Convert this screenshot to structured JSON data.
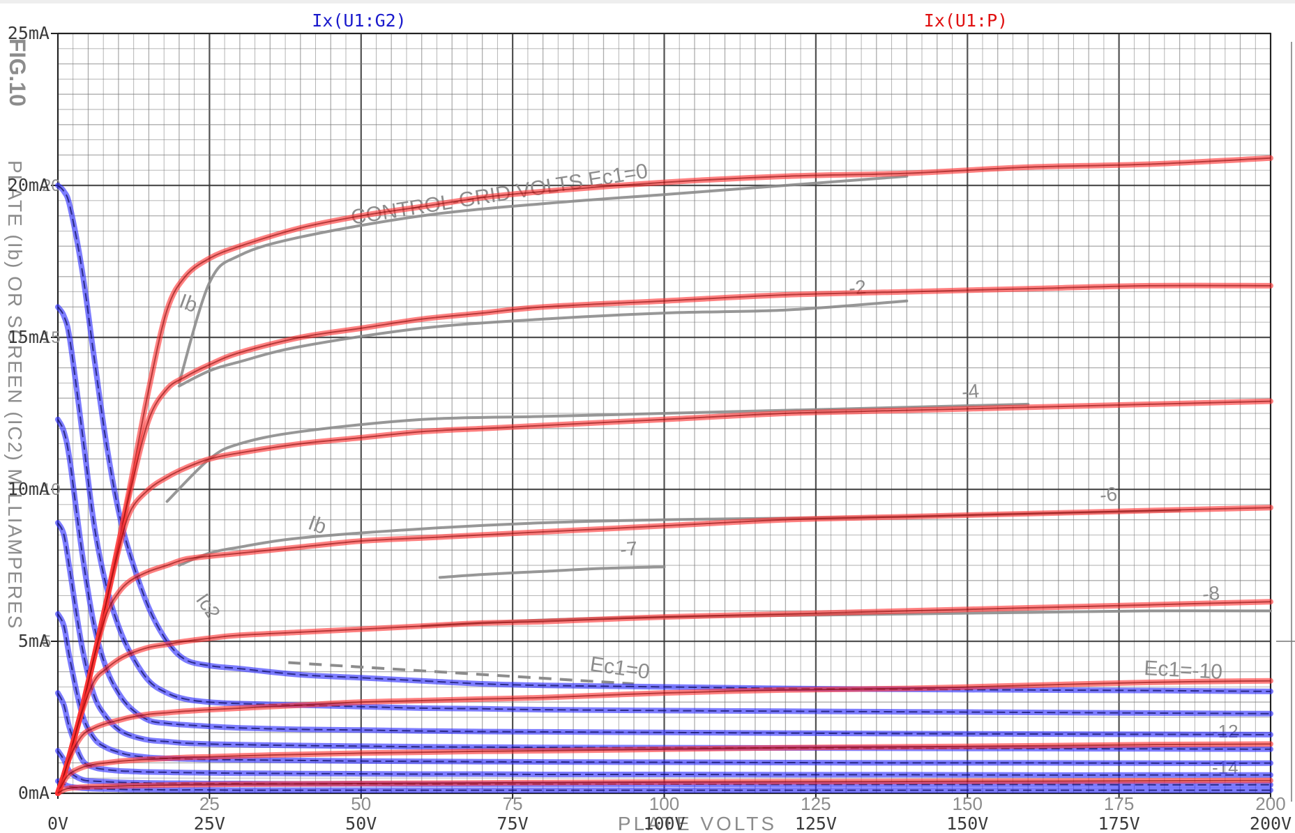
{
  "chart_data": {
    "type": "line",
    "legend": [
      "Ix(U1:G2)",
      "Ix(U1:P)"
    ],
    "colors": {
      "screen": "#2b2bff",
      "plate": "#ff3333",
      "legend_screen": "#1a1acc",
      "legend_plate": "#e01010",
      "background_curve": "#8c8c8c",
      "grid_major": "#333333",
      "grid_minor": "#777777"
    },
    "xlim": [
      0,
      200
    ],
    "ylim": [
      0,
      25
    ],
    "x_ticks": [
      "0V",
      "25V",
      "50V",
      "75V",
      "100V",
      "125V",
      "150V",
      "175V",
      "200V"
    ],
    "y_ticks": [
      "0mA",
      "5mA",
      "10mA",
      "15mA",
      "20mA",
      "25mA"
    ],
    "x_values_v": [
      0,
      1,
      2,
      4,
      6,
      8,
      10,
      12,
      15,
      18,
      21,
      25,
      30,
      40,
      50,
      60,
      70,
      80,
      100,
      120,
      140,
      160,
      180,
      200
    ],
    "series": [
      {
        "name": "Ix(U1:G2)",
        "kind": "screen",
        "values": [
          20,
          19.8,
          19.3,
          17.2,
          14.3,
          11.5,
          9.3,
          7.8,
          6.1,
          5.0,
          4.4,
          4.2,
          4.1,
          3.9,
          3.8,
          3.7,
          3.6,
          3.55,
          3.5,
          3.45,
          3.42,
          3.4,
          3.38,
          3.35
        ]
      },
      {
        "name": "Ix(U1:G2)",
        "kind": "screen",
        "values": [
          16,
          15.7,
          14.9,
          11.9,
          8.8,
          6.8,
          5.5,
          4.6,
          3.7,
          3.3,
          3.1,
          3.0,
          2.95,
          2.9,
          2.85,
          2.8,
          2.78,
          2.75,
          2.72,
          2.7,
          2.68,
          2.66,
          2.64,
          2.62
        ]
      },
      {
        "name": "Ix(U1:G2)",
        "kind": "screen",
        "values": [
          12.3,
          11.9,
          10.9,
          7.9,
          5.5,
          4.1,
          3.3,
          2.8,
          2.4,
          2.3,
          2.25,
          2.2,
          2.15,
          2.1,
          2.08,
          2.05,
          2.03,
          2.02,
          2.0,
          1.98,
          1.96,
          1.95,
          1.94,
          1.93
        ]
      },
      {
        "name": "Ix(U1:G2)",
        "kind": "screen",
        "values": [
          8.9,
          8.5,
          7.3,
          4.8,
          3.2,
          2.5,
          2.1,
          1.9,
          1.75,
          1.7,
          1.65,
          1.62,
          1.6,
          1.57,
          1.55,
          1.53,
          1.52,
          1.51,
          1.5,
          1.49,
          1.48,
          1.47,
          1.46,
          1.45
        ]
      },
      {
        "name": "Ix(U1:G2)",
        "kind": "screen",
        "values": [
          5.9,
          5.5,
          4.4,
          2.6,
          1.8,
          1.5,
          1.35,
          1.25,
          1.18,
          1.15,
          1.13,
          1.11,
          1.1,
          1.08,
          1.06,
          1.05,
          1.04,
          1.03,
          1.02,
          1.01,
          1.0,
          1.0,
          0.99,
          0.99
        ]
      },
      {
        "name": "Ix(U1:G2)",
        "kind": "screen",
        "values": [
          3.3,
          2.9,
          2.1,
          1.1,
          0.85,
          0.78,
          0.74,
          0.72,
          0.7,
          0.69,
          0.68,
          0.67,
          0.66,
          0.65,
          0.64,
          0.63,
          0.63,
          0.62,
          0.62,
          0.61,
          0.61,
          0.6,
          0.6,
          0.6
        ]
      },
      {
        "name": "Ix(U1:G2)",
        "kind": "screen",
        "values": [
          1.4,
          1.1,
          0.7,
          0.45,
          0.4,
          0.38,
          0.36,
          0.35,
          0.34,
          0.33,
          0.33,
          0.32,
          0.32,
          0.31,
          0.31,
          0.3,
          0.3,
          0.3,
          0.3,
          0.29,
          0.29,
          0.29,
          0.28,
          0.28
        ]
      },
      {
        "name": "Ix(U1:G2)",
        "kind": "screen",
        "values": [
          0.4,
          0.3,
          0.22,
          0.17,
          0.15,
          0.14,
          0.13,
          0.12,
          0.12,
          0.11,
          0.11,
          0.11,
          0.1,
          0.1,
          0.1,
          0.1,
          0.1,
          0.1,
          0.1,
          0.1,
          0.1,
          0.1,
          0.1,
          0.1
        ]
      },
      {
        "name": "Ix(U1:P)",
        "kind": "plate",
        "values": [
          0,
          0.6,
          1.3,
          2.8,
          4.5,
          6.3,
          8.2,
          10.2,
          13.3,
          15.9,
          17.0,
          17.6,
          18.0,
          18.6,
          19.0,
          19.3,
          19.6,
          19.8,
          20.1,
          20.3,
          20.4,
          20.6,
          20.7,
          20.9
        ]
      },
      {
        "name": "Ix(U1:P)",
        "kind": "plate",
        "values": [
          0,
          0.6,
          1.3,
          2.8,
          4.5,
          6.3,
          8.2,
          10.0,
          12.3,
          13.3,
          13.7,
          14.1,
          14.5,
          15.0,
          15.3,
          15.6,
          15.8,
          16.0,
          16.2,
          16.4,
          16.5,
          16.6,
          16.7,
          16.7
        ]
      },
      {
        "name": "Ix(U1:P)",
        "kind": "plate",
        "values": [
          0,
          0.6,
          1.3,
          2.8,
          4.5,
          6.3,
          8.0,
          9.3,
          10.0,
          10.4,
          10.7,
          11.0,
          11.2,
          11.5,
          11.7,
          11.9,
          12.0,
          12.1,
          12.3,
          12.5,
          12.6,
          12.7,
          12.8,
          12.9
        ]
      },
      {
        "name": "Ix(U1:P)",
        "kind": "plate",
        "values": [
          0,
          0.6,
          1.3,
          2.8,
          4.5,
          5.9,
          6.6,
          7.0,
          7.3,
          7.5,
          7.7,
          7.8,
          7.9,
          8.1,
          8.3,
          8.4,
          8.5,
          8.6,
          8.8,
          9.0,
          9.1,
          9.2,
          9.3,
          9.4
        ]
      },
      {
        "name": "Ix(U1:P)",
        "kind": "plate",
        "values": [
          0,
          0.6,
          1.3,
          2.7,
          3.7,
          4.1,
          4.4,
          4.6,
          4.8,
          4.9,
          5.0,
          5.1,
          5.2,
          5.3,
          5.4,
          5.5,
          5.6,
          5.65,
          5.8,
          5.9,
          6.0,
          6.1,
          6.2,
          6.3
        ]
      },
      {
        "name": "Ix(U1:P)",
        "kind": "plate",
        "values": [
          0,
          0.6,
          1.2,
          1.9,
          2.15,
          2.3,
          2.4,
          2.5,
          2.6,
          2.65,
          2.7,
          2.75,
          2.8,
          2.9,
          3.0,
          3.05,
          3.1,
          3.15,
          3.3,
          3.4,
          3.45,
          3.55,
          3.65,
          3.7
        ]
      },
      {
        "name": "Ix(U1:P)",
        "kind": "plate",
        "values": [
          0,
          0.4,
          0.65,
          0.85,
          0.95,
          1.0,
          1.05,
          1.08,
          1.12,
          1.15,
          1.18,
          1.2,
          1.23,
          1.28,
          1.32,
          1.35,
          1.38,
          1.4,
          1.45,
          1.5,
          1.53,
          1.56,
          1.6,
          1.62
        ]
      },
      {
        "name": "Ix(U1:P)",
        "kind": "plate",
        "values": [
          0,
          0.12,
          0.17,
          0.2,
          0.22,
          0.23,
          0.24,
          0.25,
          0.26,
          0.27,
          0.28,
          0.29,
          0.3,
          0.31,
          0.32,
          0.33,
          0.34,
          0.35,
          0.37,
          0.38,
          0.39,
          0.4,
          0.41,
          0.42
        ]
      }
    ],
    "scan": {
      "x_ticks": [
        "25",
        "50",
        "75",
        "100",
        "125",
        "150",
        "175",
        "200"
      ],
      "y_ticks": [
        "5",
        "10",
        "15",
        "20"
      ],
      "xlabel": "PLATE VOLTS",
      "ylabel": "PLATE (Ib) OR SCREEN (IC2) MILLIAMPERES",
      "figure": "FIG.10",
      "annotations": [
        "CONTROL-GRID VOLTS Ec1=0",
        "Ib",
        "Ic2",
        "Ec1=0",
        "Ec1=-10",
        "-2",
        "-4",
        "-6",
        "-7",
        "-8",
        "-12",
        "-14"
      ],
      "background_curves": [
        {
          "x": [
            20,
            25,
            30,
            40,
            60,
            80,
            100,
            120,
            140
          ],
          "y": [
            13.5,
            16.8,
            17.7,
            18.3,
            19.0,
            19.4,
            19.7,
            20.0,
            20.3
          ]
        },
        {
          "x": [
            20,
            25,
            30,
            40,
            60,
            80,
            100,
            120,
            140
          ],
          "y": [
            13.4,
            13.9,
            14.2,
            14.7,
            15.3,
            15.6,
            15.8,
            15.9,
            16.2
          ]
        },
        {
          "x": [
            18,
            25,
            30,
            40,
            60,
            80,
            100,
            120,
            140,
            160
          ],
          "y": [
            9.6,
            11.0,
            11.5,
            11.9,
            12.3,
            12.4,
            12.5,
            12.6,
            12.7,
            12.8
          ]
        },
        {
          "x": [
            20,
            25,
            30,
            40,
            60,
            80,
            100,
            120,
            140,
            160,
            185
          ],
          "y": [
            7.5,
            7.9,
            8.1,
            8.4,
            8.7,
            8.9,
            9.0,
            9.05,
            9.1,
            9.2,
            9.3
          ]
        },
        {
          "x": [
            63,
            70,
            80,
            90,
            100
          ],
          "y": [
            7.1,
            7.2,
            7.3,
            7.4,
            7.45
          ]
        },
        {
          "x": [
            60,
            80,
            100,
            120,
            140,
            160,
            180,
            200
          ],
          "y": [
            5.5,
            5.7,
            5.8,
            5.85,
            5.9,
            5.95,
            6.0,
            6.0
          ]
        }
      ]
    }
  }
}
